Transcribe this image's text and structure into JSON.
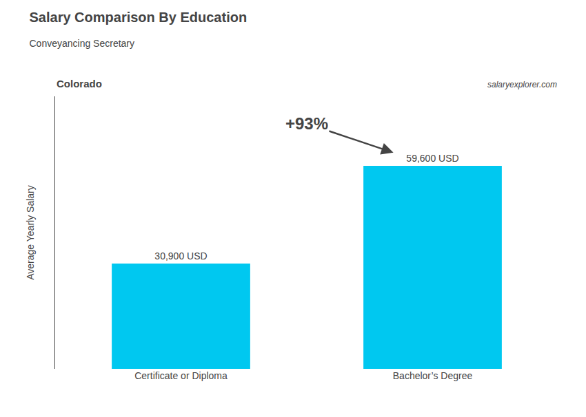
{
  "chart_data": {
    "type": "bar",
    "title": "Salary Comparison By Education",
    "subtitle": "Conveyancing Secretary",
    "ylabel": "Average Yearly Salary",
    "categories": [
      "Certificate or Diploma",
      "Bachelor’s Degree"
    ],
    "values": [
      30900,
      59600
    ],
    "value_labels": [
      "30,900 USD",
      "59,600 USD"
    ],
    "data_labels": true,
    "color": "#00C8F0",
    "ylim": [
      0,
      80000
    ],
    "tick_labels": "x",
    "grid": false,
    "annotations": [
      {
        "text": "+93%",
        "from": "Certificate or Diploma",
        "to": "Bachelor’s Degree"
      },
      {
        "text": "Colorado"
      },
      {
        "text": "salaryexplorer.com"
      }
    ]
  }
}
